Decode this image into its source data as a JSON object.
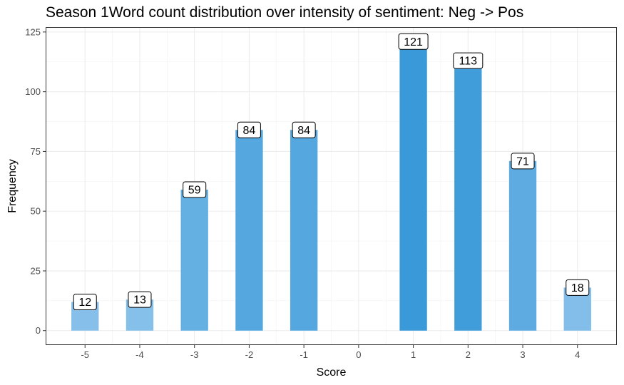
{
  "chart_data": {
    "type": "bar",
    "title": "Season 1Word count distribution over intensity of sentiment: Neg -> Pos",
    "xlabel": "Score",
    "ylabel": "Frequency",
    "x": [
      -5,
      -4,
      -3,
      -2,
      -1,
      1,
      2,
      3,
      4
    ],
    "values": [
      12,
      13,
      59,
      84,
      84,
      121,
      113,
      71,
      18
    ],
    "x_ticks": [
      "-5",
      "-4",
      "-3",
      "-2",
      "-1",
      "0",
      "1",
      "2",
      "3",
      "4"
    ],
    "y_ticks": [
      "0",
      "25",
      "50",
      "75",
      "100",
      "125"
    ],
    "xlim": [
      -5.72,
      4.72
    ],
    "ylim": [
      -6.05,
      127.05
    ],
    "grid": true,
    "bar_color_scale": {
      "low": "#86c0ea",
      "high": "#3a9ad9",
      "value_range": [
        12,
        121
      ]
    }
  }
}
